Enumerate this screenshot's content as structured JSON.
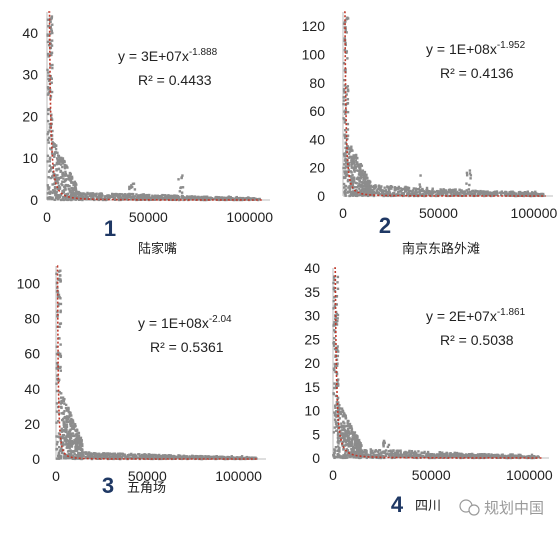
{
  "colors": {
    "points": "#8c8c8c",
    "fit_line": "#c0392b",
    "axis": "#bdbdbd",
    "tick_text": "#222222",
    "panel_number": "#1f3864",
    "watermark": "#999999"
  },
  "watermark": {
    "text": "规划中国",
    "icon": "wechat-bubble-icon"
  },
  "chart_data": [
    {
      "type": "scatter",
      "panel_number": "1",
      "caption": "陆家嘴",
      "xlim": [
        0,
        110000
      ],
      "ylim": [
        0,
        45
      ],
      "xticks": [
        "0",
        "50000",
        "100000"
      ],
      "yticks": [
        "0",
        "10",
        "20",
        "30",
        "40"
      ],
      "equation": {
        "base": "y = 3E+07x",
        "exponent": "-1.888"
      },
      "r2": "R² = 0.4433",
      "fit": {
        "a": 30000000,
        "b": -1.888
      },
      "grid": false,
      "points_profile": {
        "head_max": 44,
        "bulk_max": 15,
        "tail_level": 2,
        "bumps": [
          {
            "x": 42000,
            "height": 5
          },
          {
            "x": 66000,
            "height": 6
          }
        ]
      }
    },
    {
      "type": "scatter",
      "panel_number": "2",
      "caption": "南京东路外滩",
      "xlim": [
        0,
        110000
      ],
      "ylim": [
        0,
        130
      ],
      "xticks": [
        "0",
        "50000",
        "100000"
      ],
      "yticks": [
        "0",
        "20",
        "40",
        "60",
        "80",
        "100",
        "120"
      ],
      "equation": {
        "base": "y = 1E+08x",
        "exponent": "-1.952"
      },
      "r2": "R² = 0.4136",
      "fit": {
        "a": 100000000,
        "b": -1.952
      },
      "grid": false,
      "points_profile": {
        "head_max": 128,
        "bulk_max": 40,
        "tail_level": 8,
        "bumps": [
          {
            "x": 40000,
            "height": 15
          },
          {
            "x": 66000,
            "height": 18
          }
        ]
      }
    },
    {
      "type": "scatter",
      "panel_number": "3",
      "caption": "五角场",
      "xlim": [
        0,
        115000
      ],
      "ylim": [
        0,
        110
      ],
      "xticks": [
        "0",
        "50000",
        "100000"
      ],
      "yticks": [
        "0",
        "20",
        "40",
        "60",
        "80",
        "100"
      ],
      "equation": {
        "base": "y = 1E+08x",
        "exponent": "-2.04"
      },
      "r2": "R² = 0.5361",
      "fit": {
        "a": 100000000,
        "b": -2.04
      },
      "grid": false,
      "points_profile": {
        "head_max": 108,
        "bulk_max": 40,
        "tail_level": 4,
        "bumps": []
      }
    },
    {
      "type": "scatter",
      "panel_number": "4",
      "caption": "四川",
      "xlim": [
        0,
        110000
      ],
      "ylim": [
        0,
        40
      ],
      "xticks": [
        "0",
        "50000",
        "100000"
      ],
      "yticks": [
        "0",
        "5",
        "10",
        "15",
        "20",
        "25",
        "30",
        "35",
        "40"
      ],
      "equation": {
        "base": "y = 2E+07x",
        "exponent": "-1.861"
      },
      "r2": "R² = 0.5038",
      "fit": {
        "a": 20000000,
        "b": -1.861
      },
      "grid": false,
      "points_profile": {
        "head_max": 39,
        "bulk_max": 12,
        "tail_level": 2,
        "bumps": [
          {
            "x": 27000,
            "height": 4
          }
        ]
      }
    }
  ]
}
